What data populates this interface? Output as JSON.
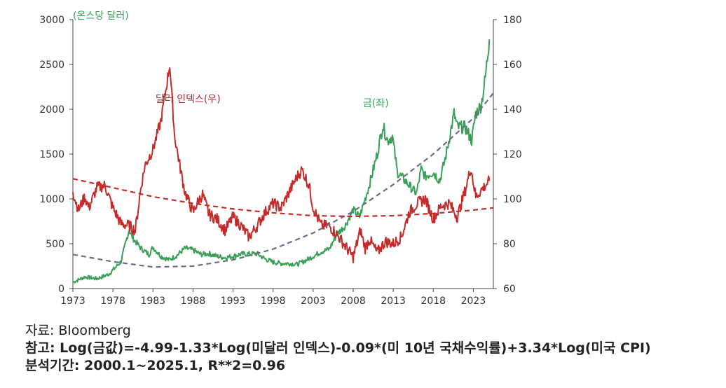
{
  "chart_data": {
    "type": "line",
    "left_axis": {
      "unit_label": "(온스당 달러)",
      "ylim": [
        0,
        3000
      ],
      "ticks": [
        "0",
        "500",
        "1000",
        "1500",
        "2000",
        "2500",
        "3000"
      ]
    },
    "right_axis": {
      "ylim": [
        60,
        180
      ],
      "ticks": [
        "60",
        "80",
        "100",
        "120",
        "140",
        "160",
        "180"
      ]
    },
    "xlim": [
      1973,
      2025.5
    ],
    "x_ticks": [
      "1973",
      "1978",
      "1983",
      "1988",
      "1993",
      "1998",
      "2003",
      "2008",
      "2013",
      "2018",
      "2023"
    ],
    "series": [
      {
        "name": "금(좌)",
        "axis": "left",
        "color": "#3aa058",
        "style": "solid",
        "points": [
          [
            1973,
            70
          ],
          [
            1974.5,
            130
          ],
          [
            1976,
            110
          ],
          [
            1977.5,
            160
          ],
          [
            1979,
            300
          ],
          [
            1980,
            650
          ],
          [
            1980.5,
            560
          ],
          [
            1981.5,
            450
          ],
          [
            1982.5,
            380
          ],
          [
            1983,
            460
          ],
          [
            1984,
            360
          ],
          [
            1985,
            320
          ],
          [
            1986,
            370
          ],
          [
            1987,
            450
          ],
          [
            1988,
            430
          ],
          [
            1989,
            380
          ],
          [
            1990,
            390
          ],
          [
            1991,
            360
          ],
          [
            1992,
            345
          ],
          [
            1993,
            360
          ],
          [
            1994,
            385
          ],
          [
            1995,
            385
          ],
          [
            1996,
            390
          ],
          [
            1997,
            330
          ],
          [
            1998,
            295
          ],
          [
            1999,
            280
          ],
          [
            2000,
            280
          ],
          [
            2001,
            270
          ],
          [
            2002,
            310
          ],
          [
            2003,
            360
          ],
          [
            2004,
            410
          ],
          [
            2005,
            440
          ],
          [
            2006,
            610
          ],
          [
            2007,
            700
          ],
          [
            2008,
            880
          ],
          [
            2008.8,
            800
          ],
          [
            2009.5,
            1000
          ],
          [
            2010,
            1150
          ],
          [
            2011,
            1500
          ],
          [
            2011.7,
            1820
          ],
          [
            2012.3,
            1650
          ],
          [
            2012.9,
            1700
          ],
          [
            2013.5,
            1300
          ],
          [
            2014,
            1250
          ],
          [
            2015,
            1150
          ],
          [
            2015.9,
            1060
          ],
          [
            2016.5,
            1330
          ],
          [
            2017,
            1250
          ],
          [
            2018,
            1300
          ],
          [
            2018.8,
            1200
          ],
          [
            2019.5,
            1450
          ],
          [
            2020.6,
            1950
          ],
          [
            2021,
            1800
          ],
          [
            2022,
            1800
          ],
          [
            2022.8,
            1650
          ],
          [
            2023.3,
            1950
          ],
          [
            2024,
            2050
          ],
          [
            2024.5,
            2350
          ],
          [
            2025,
            2780
          ]
        ]
      },
      {
        "name": "달러 인덱스(우)",
        "axis": "right",
        "color": "#c42b2b",
        "style": "solid",
        "points": [
          [
            1973,
            103
          ],
          [
            1973.7,
            95
          ],
          [
            1974.5,
            101
          ],
          [
            1975,
            96
          ],
          [
            1976,
            105
          ],
          [
            1977,
            106
          ],
          [
            1978,
            96
          ],
          [
            1979,
            89
          ],
          [
            1980,
            88
          ],
          [
            1980.8,
            86
          ],
          [
            1981.5,
            105
          ],
          [
            1982,
            115
          ],
          [
            1983,
            122
          ],
          [
            1984,
            135
          ],
          [
            1985.1,
            160
          ],
          [
            1985.7,
            128
          ],
          [
            1986.5,
            112
          ],
          [
            1987,
            103
          ],
          [
            1988,
            94
          ],
          [
            1988.5,
            98
          ],
          [
            1989.2,
            102
          ],
          [
            1990,
            93
          ],
          [
            1991,
            91
          ],
          [
            1992,
            86
          ],
          [
            1993,
            92
          ],
          [
            1994,
            88
          ],
          [
            1995,
            83
          ],
          [
            1996,
            88
          ],
          [
            1997,
            94
          ],
          [
            1998,
            98
          ],
          [
            1999,
            96
          ],
          [
            2000,
            103
          ],
          [
            2001,
            110
          ],
          [
            2001.6,
            113
          ],
          [
            2002.5,
            106
          ],
          [
            2003,
            96
          ],
          [
            2004,
            88
          ],
          [
            2005,
            88
          ],
          [
            2006,
            84
          ],
          [
            2007,
            79
          ],
          [
            2008,
            74
          ],
          [
            2008.9,
            86
          ],
          [
            2009.5,
            78
          ],
          [
            2010,
            82
          ],
          [
            2011,
            76
          ],
          [
            2012,
            81
          ],
          [
            2013,
            80
          ],
          [
            2014,
            83
          ],
          [
            2015,
            94
          ],
          [
            2016,
            98
          ],
          [
            2017,
            100
          ],
          [
            2018,
            91
          ],
          [
            2019,
            97
          ],
          [
            2020,
            98
          ],
          [
            2021,
            92
          ],
          [
            2022,
            104
          ],
          [
            2022.7,
            114
          ],
          [
            2023.3,
            101
          ],
          [
            2024,
            104
          ],
          [
            2024.5,
            106
          ],
          [
            2025,
            108
          ]
        ]
      },
      {
        "name": "gold-trend",
        "axis": "left",
        "color": "#6a6f8c",
        "style": "dashed",
        "points": [
          [
            1973,
            380
          ],
          [
            1978,
            300
          ],
          [
            1983,
            240
          ],
          [
            1988,
            250
          ],
          [
            1993,
            320
          ],
          [
            1998,
            440
          ],
          [
            2003,
            620
          ],
          [
            2008,
            860
          ],
          [
            2013,
            1160
          ],
          [
            2018,
            1500
          ],
          [
            2023,
            1900
          ],
          [
            2025.5,
            2180
          ]
        ]
      },
      {
        "name": "dollar-trend",
        "axis": "right",
        "color": "#c42b2b",
        "style": "dashed",
        "points": [
          [
            1973,
            109
          ],
          [
            1978,
            105
          ],
          [
            1983,
            101
          ],
          [
            1988,
            98
          ],
          [
            1993,
            95.5
          ],
          [
            1998,
            93.8
          ],
          [
            2003,
            92.5
          ],
          [
            2008,
            92.2
          ],
          [
            2013,
            92.5
          ],
          [
            2018,
            93.5
          ],
          [
            2023,
            95
          ],
          [
            2025.5,
            96
          ]
        ]
      }
    ],
    "labels": {
      "unit": "(온스당 달러)",
      "dollar": "달러 인덱스(우)",
      "gold": "금(좌)"
    }
  },
  "notes": {
    "source": "자료: Bloomberg",
    "formula": "참고: Log(금값)=-4.99-1.33*Log(미달러 인덱스)-0.09*(미 10년 국채수익률)+3.34*Log(미국 CPI)",
    "period": "분석기간: 2000.1~2025.1, R**2=0.96"
  }
}
